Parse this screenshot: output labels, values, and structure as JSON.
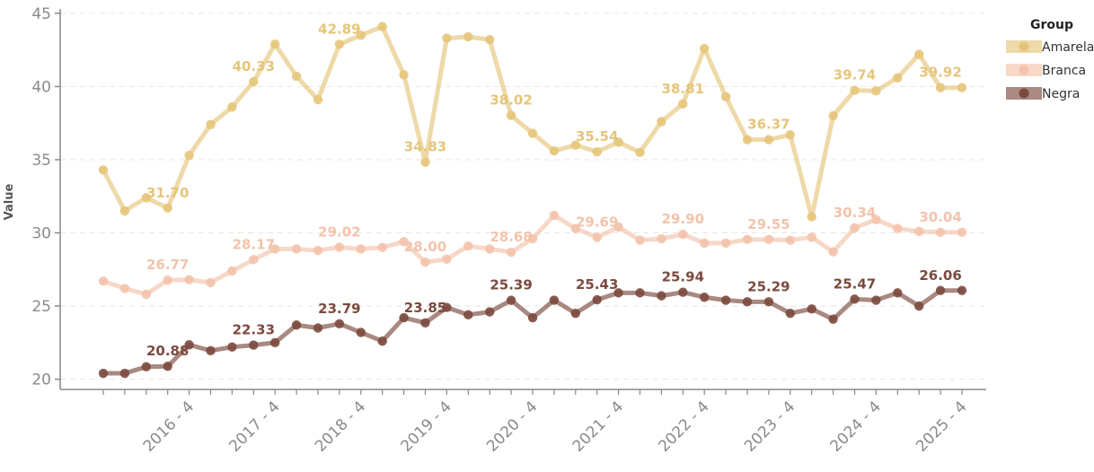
{
  "chart_data": {
    "type": "line",
    "title": "",
    "xlabel": "",
    "ylabel": "Value",
    "ylim": [
      19.3,
      45.3
    ],
    "yticks": [
      20,
      25,
      30,
      35,
      40,
      45
    ],
    "grid": "horizontal dashed",
    "legend_title": "Group",
    "legend_position": "top-right",
    "x": [
      "2015-Q4",
      "2016-Q1",
      "2016-Q2",
      "2016-Q3",
      "2016-Q4",
      "2017-Q1",
      "2017-Q2",
      "2017-Q3",
      "2017-Q4",
      "2018-Q1",
      "2018-Q2",
      "2018-Q3",
      "2018-Q4",
      "2019-Q1",
      "2019-Q2",
      "2019-Q3",
      "2019-Q4",
      "2020-Q1",
      "2020-Q2",
      "2020-Q3",
      "2020-Q4",
      "2021-Q1",
      "2021-Q2",
      "2021-Q3",
      "2021-Q4",
      "2022-Q1",
      "2022-Q2",
      "2022-Q3",
      "2022-Q4",
      "2023-Q1",
      "2023-Q2",
      "2023-Q3",
      "2023-Q4",
      "2024-Q1",
      "2024-Q2",
      "2024-Q3",
      "2024-Q4",
      "2025-Q1",
      "2025-Q2",
      "2025-Q3",
      "2025-Q4"
    ],
    "xtick_labels": [
      {
        "label": "2016 - 4",
        "index": 4
      },
      {
        "label": "2017 - 4",
        "index": 8
      },
      {
        "label": "2018 - 4",
        "index": 12
      },
      {
        "label": "2019 - 4",
        "index": 16
      },
      {
        "label": "2020 - 4",
        "index": 20
      },
      {
        "label": "2021 - 4",
        "index": 24
      },
      {
        "label": "2022 - 4",
        "index": 28
      },
      {
        "label": "2023 - 4",
        "index": 32
      },
      {
        "label": "2024 - 4",
        "index": 36
      },
      {
        "label": "2025 - 4",
        "index": 40
      }
    ],
    "series": [
      {
        "name": "Amarela",
        "color": "#e5c57a",
        "values": [
          34.3,
          31.5,
          32.4,
          31.7,
          35.3,
          37.4,
          38.6,
          40.33,
          42.9,
          40.7,
          39.1,
          42.89,
          43.5,
          44.1,
          40.8,
          34.83,
          43.3,
          43.4,
          43.2,
          38.02,
          36.8,
          35.6,
          36.0,
          35.54,
          36.2,
          35.5,
          37.6,
          38.81,
          42.6,
          39.3,
          36.37,
          36.37,
          36.7,
          31.1,
          38.0,
          39.74,
          39.7,
          40.6,
          42.2,
          39.92,
          39.92
        ],
        "labels": [
          {
            "index": 3,
            "text": "31.70"
          },
          {
            "index": 7,
            "text": "40.33"
          },
          {
            "index": 11,
            "text": "42.89"
          },
          {
            "index": 15,
            "text": "34.83"
          },
          {
            "index": 19,
            "text": "38.02"
          },
          {
            "index": 23,
            "text": "35.54"
          },
          {
            "index": 27,
            "text": "38.81"
          },
          {
            "index": 31,
            "text": "36.37"
          },
          {
            "index": 35,
            "text": "39.74"
          },
          {
            "index": 39,
            "text": "39.92"
          }
        ]
      },
      {
        "name": "Branca",
        "color": "#f3c3ab",
        "values": [
          26.7,
          26.2,
          25.8,
          26.77,
          26.8,
          26.6,
          27.4,
          28.17,
          28.9,
          28.9,
          28.8,
          29.02,
          28.9,
          29.0,
          29.4,
          28.0,
          28.2,
          29.1,
          28.9,
          28.68,
          29.6,
          31.2,
          30.3,
          29.69,
          30.4,
          29.5,
          29.6,
          29.9,
          29.3,
          29.3,
          29.55,
          29.55,
          29.5,
          29.7,
          28.7,
          30.34,
          30.9,
          30.3,
          30.1,
          30.04,
          30.04
        ],
        "labels": [
          {
            "index": 3,
            "text": "26.77"
          },
          {
            "index": 7,
            "text": "28.17"
          },
          {
            "index": 11,
            "text": "29.02"
          },
          {
            "index": 15,
            "text": "28.00"
          },
          {
            "index": 19,
            "text": "28.68"
          },
          {
            "index": 23,
            "text": "29.69"
          },
          {
            "index": 27,
            "text": "29.90"
          },
          {
            "index": 31,
            "text": "29.55"
          },
          {
            "index": 35,
            "text": "30.34"
          },
          {
            "index": 39,
            "text": "30.04"
          }
        ]
      },
      {
        "name": "Negra",
        "color": "#7b4a3e",
        "values": [
          20.4,
          20.4,
          20.85,
          20.88,
          22.35,
          21.95,
          22.2,
          22.33,
          22.5,
          23.7,
          23.5,
          23.79,
          23.2,
          22.6,
          24.2,
          23.85,
          24.9,
          24.4,
          24.6,
          25.39,
          24.2,
          25.4,
          24.5,
          25.43,
          25.9,
          25.9,
          25.7,
          25.94,
          25.6,
          25.4,
          25.29,
          25.29,
          24.5,
          24.8,
          24.1,
          25.47,
          25.4,
          25.9,
          25.0,
          26.06,
          26.06
        ],
        "labels": [
          {
            "index": 3,
            "text": "20.88"
          },
          {
            "index": 7,
            "text": "22.33"
          },
          {
            "index": 11,
            "text": "23.79"
          },
          {
            "index": 15,
            "text": "23.85"
          },
          {
            "index": 19,
            "text": "25.39"
          },
          {
            "index": 23,
            "text": "25.43"
          },
          {
            "index": 27,
            "text": "25.94"
          },
          {
            "index": 31,
            "text": "25.29"
          },
          {
            "index": 35,
            "text": "25.47"
          },
          {
            "index": 39,
            "text": "26.06"
          }
        ]
      }
    ]
  }
}
